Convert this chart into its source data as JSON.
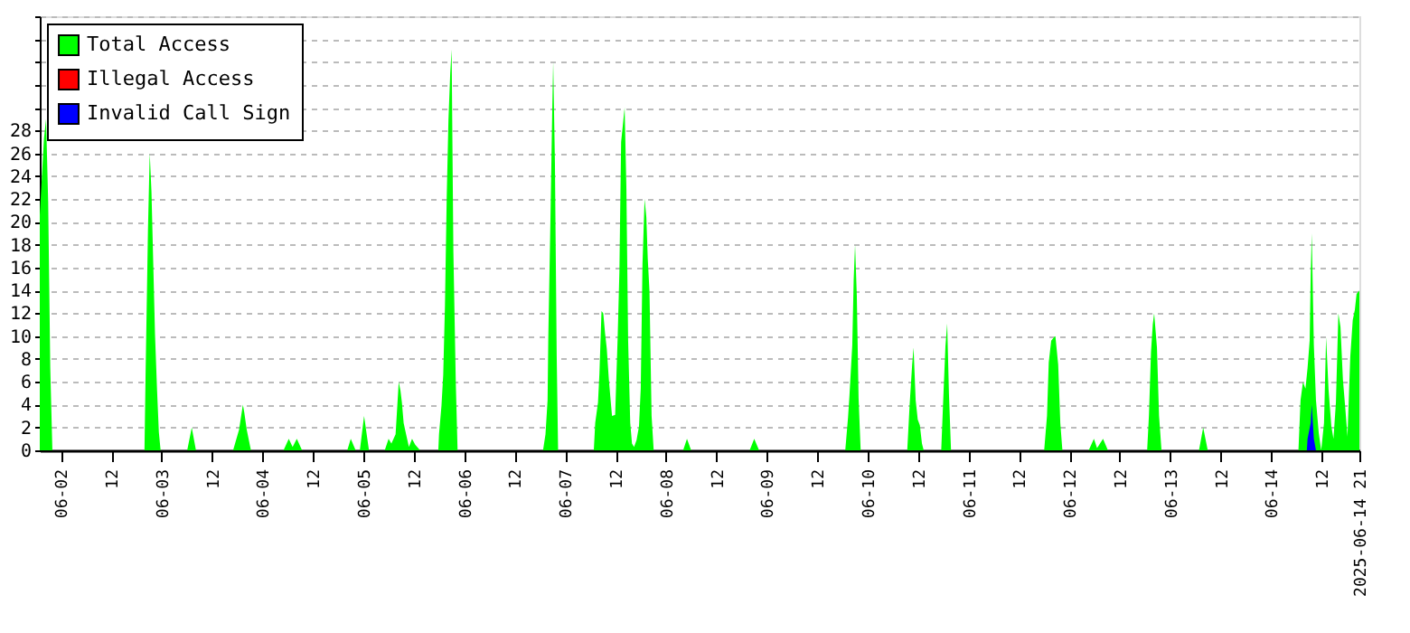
{
  "chart_data": {
    "type": "area",
    "xlim": [
      "2025-06-01T19:00",
      "2025-06-14T21:00"
    ],
    "xticks": [
      {
        "value": "2025-06-02T00:00",
        "label": "06-02"
      },
      {
        "value": "2025-06-02T12:00",
        "label": "12"
      },
      {
        "value": "2025-06-03T00:00",
        "label": "06-03"
      },
      {
        "value": "2025-06-03T12:00",
        "label": "12"
      },
      {
        "value": "2025-06-04T00:00",
        "label": "06-04"
      },
      {
        "value": "2025-06-04T12:00",
        "label": "12"
      },
      {
        "value": "2025-06-05T00:00",
        "label": "06-05"
      },
      {
        "value": "2025-06-05T12:00",
        "label": "12"
      },
      {
        "value": "2025-06-06T00:00",
        "label": "06-06"
      },
      {
        "value": "2025-06-06T12:00",
        "label": "12"
      },
      {
        "value": "2025-06-07T00:00",
        "label": "06-07"
      },
      {
        "value": "2025-06-07T12:00",
        "label": "12"
      },
      {
        "value": "2025-06-08T00:00",
        "label": "06-08"
      },
      {
        "value": "2025-06-08T12:00",
        "label": "12"
      },
      {
        "value": "2025-06-09T00:00",
        "label": "06-09"
      },
      {
        "value": "2025-06-09T12:00",
        "label": "12"
      },
      {
        "value": "2025-06-10T00:00",
        "label": "06-10"
      },
      {
        "value": "2025-06-10T12:00",
        "label": "12"
      },
      {
        "value": "2025-06-11T00:00",
        "label": "06-11"
      },
      {
        "value": "2025-06-11T12:00",
        "label": "12"
      },
      {
        "value": "2025-06-12T00:00",
        "label": "06-12"
      },
      {
        "value": "2025-06-12T12:00",
        "label": "12"
      },
      {
        "value": "2025-06-13T00:00",
        "label": "06-13"
      },
      {
        "value": "2025-06-13T12:00",
        "label": "12"
      },
      {
        "value": "2025-06-14T00:00",
        "label": "06-14"
      },
      {
        "value": "2025-06-14T12:00",
        "label": "12"
      },
      {
        "value": "2025-06-14T21:00",
        "label": "2025-06-14 21"
      }
    ],
    "ylim": [
      0,
      38
    ],
    "yticks": [
      0,
      2,
      4,
      6,
      8,
      10,
      12,
      14,
      16,
      18,
      20,
      22,
      24,
      26,
      28,
      {
        "value": 30,
        "label": null
      },
      {
        "value": 32,
        "label": null
      },
      {
        "value": 34,
        "label": null
      },
      {
        "value": 36,
        "label": null
      },
      {
        "value": 38,
        "label": null
      }
    ],
    "grid": "y",
    "legend": "top left",
    "series": [
      {
        "name": "Total Access",
        "color": "#00ff00",
        "x": [
          "2025-06-01T19:00",
          "2025-06-01T20:00",
          "2025-06-01T20:30",
          "2025-06-01T21:00",
          "2025-06-01T21:30",
          "2025-06-01T22:00",
          "2025-06-02T19:55",
          "2025-06-02T20:10",
          "2025-06-02T20:45",
          "2025-06-02T21:10",
          "2025-06-02T21:35",
          "2025-06-02T22:00",
          "2025-06-02T22:25",
          "2025-06-02T22:55",
          "2025-06-02T23:20",
          "2025-06-02T23:45",
          "2025-06-03T06:05",
          "2025-06-03T07:10",
          "2025-06-03T08:10",
          "2025-06-03T17:00",
          "2025-06-03T18:25",
          "2025-06-03T19:20",
          "2025-06-03T19:40",
          "2025-06-03T20:15",
          "2025-06-03T21:15",
          "2025-06-04T05:00",
          "2025-06-04T06:15",
          "2025-06-04T07:10",
          "2025-06-04T08:10",
          "2025-06-04T09:25",
          "2025-06-04T20:10",
          "2025-06-04T21:00",
          "2025-06-04T22:10",
          "2025-06-04T23:10",
          "2025-06-05T00:10",
          "2025-06-05T01:20",
          "2025-06-05T05:05",
          "2025-06-05T06:00",
          "2025-06-05T06:40",
          "2025-06-05T07:40",
          "2025-06-05T08:25",
          "2025-06-05T08:50",
          "2025-06-05T09:10",
          "2025-06-05T09:35",
          "2025-06-05T10:10",
          "2025-06-05T10:50",
          "2025-06-05T11:35",
          "2025-06-05T12:20",
          "2025-06-05T13:30",
          "2025-06-05T17:50",
          "2025-06-05T18:00",
          "2025-06-05T18:35",
          "2025-06-05T19:00",
          "2025-06-05T19:25",
          "2025-06-05T19:50",
          "2025-06-05T20:15",
          "2025-06-05T20:40",
          "2025-06-05T21:00",
          "2025-06-05T21:25",
          "2025-06-05T22:00",
          "2025-06-05T22:25",
          "2025-06-06T18:45",
          "2025-06-06T19:20",
          "2025-06-06T19:50",
          "2025-06-06T20:00",
          "2025-06-06T20:30",
          "2025-06-06T20:55",
          "2025-06-06T21:10",
          "2025-06-06T21:35",
          "2025-06-06T22:00",
          "2025-06-06T22:20",
          "2025-06-07T06:50",
          "2025-06-07T07:10",
          "2025-06-07T07:50",
          "2025-06-07T08:10",
          "2025-06-07T08:40",
          "2025-06-07T09:05",
          "2025-06-07T09:30",
          "2025-06-07T09:55",
          "2025-06-07T10:25",
          "2025-06-07T10:50",
          "2025-06-07T11:10",
          "2025-06-07T11:55",
          "2025-06-07T12:30",
          "2025-06-07T12:55",
          "2025-06-07T13:20",
          "2025-06-07T13:50",
          "2025-06-07T14:10",
          "2025-06-07T14:35",
          "2025-06-07T15:00",
          "2025-06-07T15:30",
          "2025-06-07T15:55",
          "2025-06-07T16:25",
          "2025-06-07T17:00",
          "2025-06-07T17:35",
          "2025-06-07T18:00",
          "2025-06-07T18:25",
          "2025-06-07T18:55",
          "2025-06-07T19:20",
          "2025-06-07T19:40",
          "2025-06-07T20:05",
          "2025-06-07T20:35",
          "2025-06-07T21:05",
          "2025-06-08T04:05",
          "2025-06-08T05:00",
          "2025-06-08T06:00",
          "2025-06-08T19:55",
          "2025-06-08T21:00",
          "2025-06-08T22:10",
          "2025-06-09T18:40",
          "2025-06-09T19:20",
          "2025-06-09T19:40",
          "2025-06-09T20:20",
          "2025-06-09T20:40",
          "2025-06-09T21:00",
          "2025-06-09T21:25",
          "2025-06-09T21:50",
          "2025-06-09T22:20",
          "2025-06-10T09:25",
          "2025-06-10T10:00",
          "2025-06-10T10:35",
          "2025-06-10T10:55",
          "2025-06-10T11:25",
          "2025-06-10T11:55",
          "2025-06-10T12:25",
          "2025-06-10T12:55",
          "2025-06-10T13:20",
          "2025-06-10T17:30",
          "2025-06-10T18:05",
          "2025-06-10T18:30",
          "2025-06-10T18:55",
          "2025-06-10T19:20",
          "2025-06-10T19:50",
          "2025-06-11T18:00",
          "2025-06-11T18:40",
          "2025-06-11T19:05",
          "2025-06-11T19:40",
          "2025-06-11T20:20",
          "2025-06-11T20:40",
          "2025-06-11T21:20",
          "2025-06-11T21:50",
          "2025-06-11T22:20",
          "2025-06-12T04:35",
          "2025-06-12T05:50",
          "2025-06-12T06:35",
          "2025-06-12T08:00",
          "2025-06-12T09:10",
          "2025-06-12T18:30",
          "2025-06-12T18:55",
          "2025-06-12T19:25",
          "2025-06-12T19:50",
          "2025-06-12T20:10",
          "2025-06-12T20:50",
          "2025-06-12T21:20",
          "2025-06-12T21:55",
          "2025-06-13T06:50",
          "2025-06-13T07:50",
          "2025-06-13T08:55",
          "2025-06-14T06:30",
          "2025-06-14T07:00",
          "2025-06-14T07:35",
          "2025-06-14T08:10",
          "2025-06-14T08:40",
          "2025-06-14T09:10",
          "2025-06-14T09:25",
          "2025-06-14T09:40",
          "2025-06-14T10:10",
          "2025-06-14T10:40",
          "2025-06-14T11:20",
          "2025-06-14T11:55",
          "2025-06-14T12:35",
          "2025-06-14T13:05",
          "2025-06-14T13:40",
          "2025-06-14T14:20",
          "2025-06-14T14:50",
          "2025-06-14T15:25",
          "2025-06-14T16:00",
          "2025-06-14T16:30",
          "2025-06-14T17:05",
          "2025-06-14T17:40",
          "2025-06-14T18:10",
          "2025-06-14T18:50",
          "2025-06-14T19:25",
          "2025-06-14T19:55",
          "2025-06-14T20:20",
          "2025-06-14T21:00"
        ],
        "values": [
          20.6,
          27.3,
          29,
          21.8,
          7.2,
          0,
          0,
          6.4,
          19.4,
          26,
          22.6,
          16.4,
          10.2,
          5.2,
          1.6,
          0,
          0,
          2,
          0,
          0,
          1.8,
          4,
          3.3,
          1.8,
          0,
          0,
          1,
          0.3,
          1,
          0,
          0,
          1,
          0,
          0,
          3,
          0,
          0,
          1,
          0.6,
          1.4,
          6,
          5.2,
          4.2,
          2.4,
          1.4,
          0.3,
          1,
          0.5,
          0,
          0,
          1.4,
          3.9,
          6.6,
          12.7,
          22.2,
          29,
          33,
          35.1,
          17.4,
          5.8,
          0,
          0,
          1.4,
          4.4,
          9.8,
          19.9,
          29.2,
          34,
          25.1,
          8.4,
          0,
          0,
          2.4,
          4.2,
          6.7,
          12.2,
          12,
          10.3,
          8.9,
          6.2,
          4.4,
          3,
          3.1,
          9.8,
          15.6,
          27,
          28.8,
          30,
          23,
          9.6,
          2.4,
          0.6,
          0.3,
          0.9,
          2.1,
          5.4,
          16.3,
          22,
          20.4,
          16.8,
          13.9,
          3,
          0,
          0,
          1,
          0,
          0,
          1,
          0,
          0,
          2.9,
          4.8,
          9.2,
          14.9,
          18,
          13.5,
          4.6,
          0,
          0,
          4.1,
          7.5,
          9,
          4.4,
          2.7,
          2.2,
          0.6,
          0,
          0,
          5.4,
          9.1,
          11.1,
          5,
          0,
          0,
          3,
          7.7,
          9.6,
          9.9,
          10,
          7.5,
          2.4,
          0,
          0,
          1,
          0.2,
          1,
          0,
          0,
          3,
          8.6,
          11,
          12,
          9,
          3,
          0,
          0,
          2,
          0,
          0,
          4.4,
          6,
          5.4,
          7.2,
          9.6,
          15.3,
          19,
          9.2,
          4.4,
          1.5,
          0,
          2.4,
          9.9,
          5.3,
          2.1,
          1,
          4.2,
          12,
          10.8,
          6.2,
          3.6,
          1.2,
          8.2,
          11.4,
          12.3,
          13.7,
          14
        ]
      },
      {
        "name": "Illegal Access",
        "color": "#ff0000"
      },
      {
        "name": "Invalid Call Sign",
        "color": "#0000ff",
        "x": [
          "2025-06-14T08:30",
          "2025-06-14T08:40",
          "2025-06-14T09:25",
          "2025-06-14T09:40",
          "2025-06-14T10:10",
          "2025-06-14T10:40"
        ],
        "values": [
          0,
          1,
          2.4,
          4,
          1,
          0
        ]
      }
    ]
  }
}
